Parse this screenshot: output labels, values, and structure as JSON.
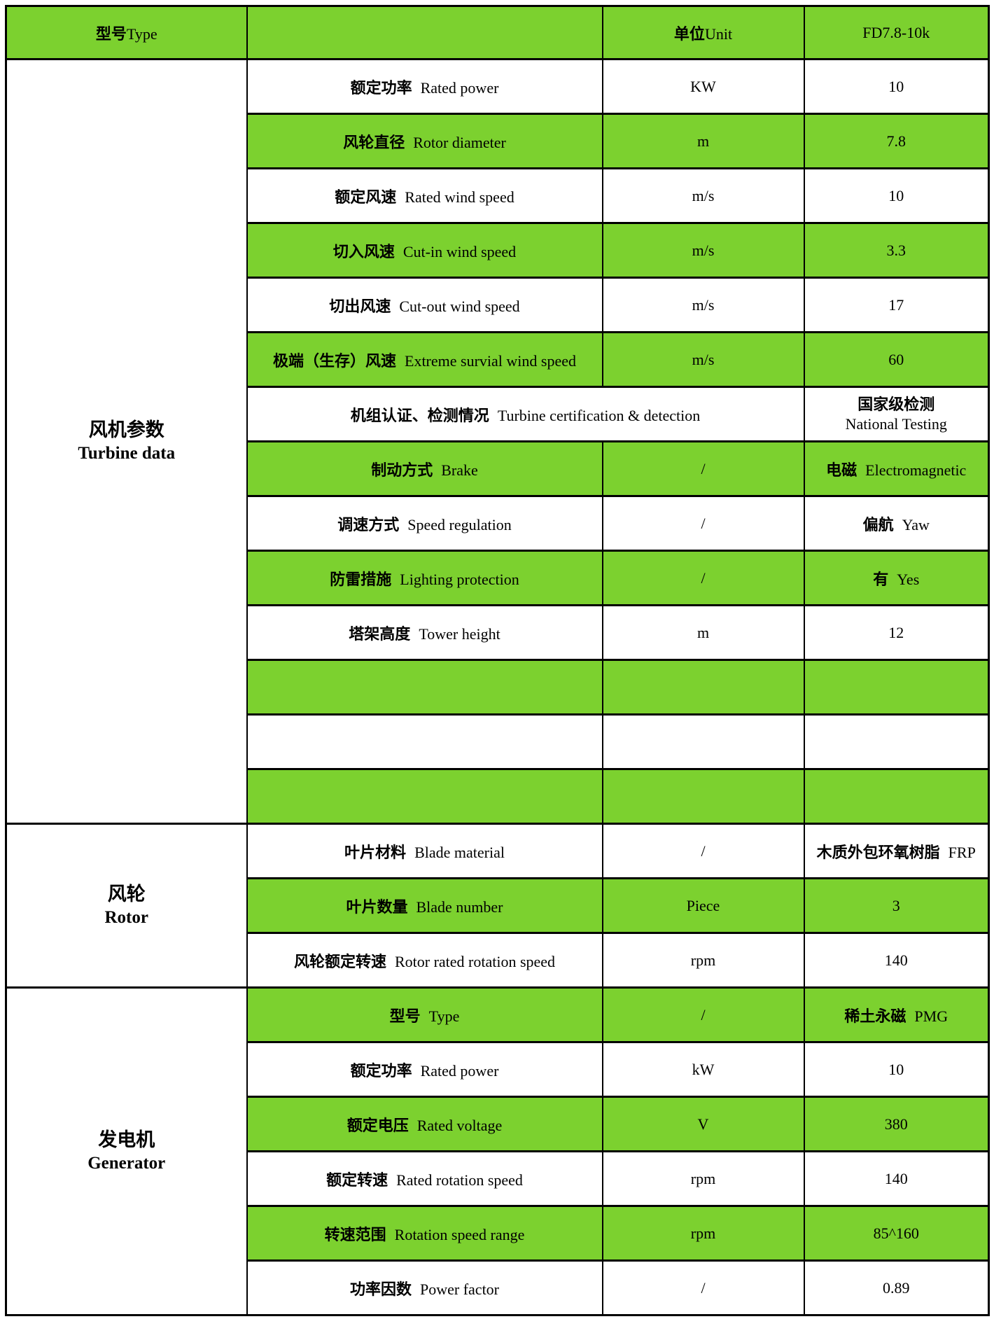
{
  "colors": {
    "green": "#7cd12f",
    "border": "#000000",
    "background": "#ffffff",
    "text": "#000000"
  },
  "header": {
    "type_zh": "型号",
    "type_en": "Type",
    "parameter": "",
    "unit_zh": "单位",
    "unit_en": "Unit",
    "model": "FD7.8-10k"
  },
  "sections": [
    {
      "category_zh": "风机参数",
      "category_en": "Turbine data",
      "rows": [
        {
          "param_zh": "额定功率",
          "param_en": "Rated power",
          "unit": "KW",
          "value": "10",
          "green": false
        },
        {
          "param_zh": "风轮直径",
          "param_en": "Rotor diameter",
          "unit": "m",
          "value": "7.8",
          "green": true
        },
        {
          "param_zh": "额定风速",
          "param_en": "Rated wind speed",
          "unit": "m/s",
          "value": "10",
          "green": false
        },
        {
          "param_zh": "切入风速",
          "param_en": "Cut-in wind speed",
          "unit": "m/s",
          "value": "3.3",
          "green": true
        },
        {
          "param_zh": "切出风速",
          "param_en": "Cut-out wind speed",
          "unit": "m/s",
          "value": "17",
          "green": false
        },
        {
          "param_zh": "极端（生存）风速",
          "param_en": "Extreme survial wind speed",
          "unit": "m/s",
          "value": "60",
          "green": true
        },
        {
          "param_zh": "机组认证、检测情况",
          "param_en": "Turbine certification & detection",
          "merge_unit": true,
          "value_zh": "国家级检测",
          "value_en": "National Testing",
          "two_line": true,
          "green": false
        },
        {
          "param_zh": "制动方式",
          "param_en": "Brake",
          "unit": "/",
          "value_zh": "电磁",
          "value_en": "Electromagnetic",
          "green": true
        },
        {
          "param_zh": "调速方式",
          "param_en": "Speed regulation",
          "unit": "/",
          "value_zh": "偏航",
          "value_en": "Yaw",
          "green": false
        },
        {
          "param_zh": "防雷措施",
          "param_en": "Lighting protection",
          "unit": "/",
          "value_zh": "有",
          "value_en": "Yes",
          "green": true
        },
        {
          "param_zh": "塔架高度",
          "param_en": "Tower height",
          "unit": "m",
          "value": "12",
          "green": false
        },
        {
          "empty": true,
          "green": true
        },
        {
          "empty": true,
          "green": false
        },
        {
          "empty": true,
          "green": true
        }
      ]
    },
    {
      "category_zh": "风轮",
      "category_en": "Rotor",
      "rows": [
        {
          "param_zh": "叶片材料",
          "param_en": "Blade material",
          "unit": "/",
          "value_zh": "木质外包环氧树脂",
          "value_en": "FRP",
          "green": false
        },
        {
          "param_zh": "叶片数量",
          "param_en": "Blade number",
          "unit": "Piece",
          "value": "3",
          "green": true
        },
        {
          "param_zh": "风轮额定转速",
          "param_en": "Rotor rated rotation speed",
          "unit": "rpm",
          "value": "140",
          "green": false
        }
      ]
    },
    {
      "category_zh": "发电机",
      "category_en": "Generator",
      "rows": [
        {
          "param_zh": "型号",
          "param_en": "Type",
          "unit": "/",
          "value_zh": "稀土永磁",
          "value_en": "PMG",
          "green": true
        },
        {
          "param_zh": "额定功率",
          "param_en": "Rated power",
          "unit": "kW",
          "value": "10",
          "green": false
        },
        {
          "param_zh": "额定电压",
          "param_en": "Rated voltage",
          "unit": "V",
          "value": "380",
          "green": true
        },
        {
          "param_zh": "额定转速",
          "param_en": "Rated rotation speed",
          "unit": "rpm",
          "value": "140",
          "green": false
        },
        {
          "param_zh": "转速范围",
          "param_en": "Rotation speed range",
          "unit": "rpm",
          "value": "85^160",
          "green": true
        },
        {
          "param_zh": "功率因数",
          "param_en": "Power factor",
          "unit": "/",
          "value": "0.89",
          "green": false
        }
      ]
    }
  ]
}
